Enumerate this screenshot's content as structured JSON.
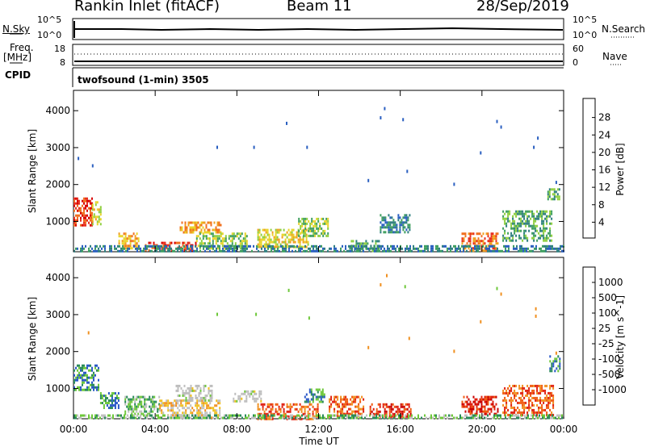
{
  "header": {
    "station": "Rankin Inlet (fitACF)",
    "beam": "Beam 11",
    "date": "28/Sep/2019"
  },
  "status_panels": {
    "nsky_label": "N.Sky",
    "nsky_ticks": [
      "10^5",
      "10^0"
    ],
    "nsearch_label": "N.Search",
    "nsearch_ticks": [
      "10^5",
      "10^0"
    ],
    "freq_label": "Freq.",
    "freq_unit": "[MHz]",
    "freq_ticks": [
      "18",
      "8"
    ],
    "nave_label": "Nave",
    "nave_ticks": [
      "60",
      "0"
    ],
    "cpid_label": "CPID",
    "cpid_value": "twofsound (1-min) 3505"
  },
  "colors": {
    "power": [
      "#1e3fd8",
      "#2a5fc0",
      "#2f7f7f",
      "#3f9f5f",
      "#8fcf3f",
      "#e8d42a",
      "#f0a020",
      "#f07020",
      "#e83020",
      "#d80000"
    ],
    "velocity": [
      "#1a2ea0",
      "#2a58c8",
      "#2a8a5a",
      "#6ec83a",
      "#c0c0c0",
      "#f0c020",
      "#f09020",
      "#f05a10",
      "#e02010",
      "#c80000"
    ],
    "gray": "#bdbdbd"
  },
  "chart_data": [
    {
      "type": "heatmap",
      "panel": "power",
      "ylabel": "Slant Range [km]",
      "yticks": [
        "4000",
        "3000",
        "2000",
        "1000"
      ],
      "ylim": [
        180,
        4550
      ],
      "xticks": [
        "00:00",
        "04:00",
        "08:00",
        "12:00",
        "16:00",
        "20:00",
        "00:00"
      ],
      "colorbar_label": "Power [dB]",
      "colorbar_ticks": [
        "28",
        "24",
        "20",
        "16",
        "12",
        "8",
        "4"
      ],
      "regions": [
        {
          "t0": 0.0,
          "t1": 0.9,
          "r0": 900,
          "r1": 1650,
          "level": 8
        },
        {
          "t0": 0.9,
          "t1": 1.3,
          "r0": 950,
          "r1": 1550,
          "level": 5
        },
        {
          "t0": 2.2,
          "t1": 3.2,
          "r0": 250,
          "r1": 700,
          "level": 6
        },
        {
          "t0": 3.5,
          "t1": 6.0,
          "r0": 200,
          "r1": 450,
          "level": 8
        },
        {
          "t0": 5.2,
          "t1": 7.2,
          "r0": 700,
          "r1": 1000,
          "level": 6
        },
        {
          "t0": 6.0,
          "t1": 8.5,
          "r0": 300,
          "r1": 700,
          "level": 4
        },
        {
          "t0": 9.0,
          "t1": 11.5,
          "r0": 300,
          "r1": 800,
          "level": 5
        },
        {
          "t0": 11.0,
          "t1": 12.5,
          "r0": 600,
          "r1": 1100,
          "level": 4
        },
        {
          "t0": 13.5,
          "t1": 15.0,
          "r0": 200,
          "r1": 500,
          "level": 3
        },
        {
          "t0": 15.0,
          "t1": 16.5,
          "r0": 700,
          "r1": 1200,
          "level": 2
        },
        {
          "t0": 19.0,
          "t1": 20.8,
          "r0": 200,
          "r1": 700,
          "level": 7
        },
        {
          "t0": 21.0,
          "t1": 23.4,
          "r0": 500,
          "r1": 1300,
          "level": 3
        },
        {
          "t0": 23.2,
          "t1": 23.8,
          "r0": 1600,
          "r1": 1900,
          "level": 3
        },
        {
          "t0": 0.0,
          "t1": 24.0,
          "r0": 180,
          "r1": 360,
          "level": 2
        }
      ],
      "scatter": [
        {
          "t": 15.2,
          "r": 4100
        },
        {
          "t": 15.0,
          "r": 3850
        },
        {
          "t": 16.1,
          "r": 3800
        },
        {
          "t": 10.4,
          "r": 3700
        },
        {
          "t": 20.7,
          "r": 3750
        },
        {
          "t": 20.9,
          "r": 3600
        },
        {
          "t": 22.7,
          "r": 3300
        },
        {
          "t": 22.5,
          "r": 3050
        },
        {
          "t": 7.0,
          "r": 3050
        },
        {
          "t": 8.8,
          "r": 3050
        },
        {
          "t": 11.4,
          "r": 3050
        },
        {
          "t": 0.2,
          "r": 2750
        },
        {
          "t": 0.9,
          "r": 2550
        },
        {
          "t": 16.3,
          "r": 2400
        },
        {
          "t": 14.4,
          "r": 2150
        },
        {
          "t": 18.6,
          "r": 2050
        },
        {
          "t": 23.6,
          "r": 2100
        },
        {
          "t": 19.9,
          "r": 2900
        }
      ]
    },
    {
      "type": "heatmap",
      "panel": "velocity",
      "ylabel": "Slant Range [km]",
      "yticks": [
        "4000",
        "3000",
        "2000",
        "1000"
      ],
      "ylim": [
        180,
        4550
      ],
      "xticks": [
        "00:00",
        "04:00",
        "08:00",
        "12:00",
        "16:00",
        "20:00",
        "00:00"
      ],
      "xlabel": "Time UT",
      "colorbar_label": "Velocity [m s^-1]",
      "colorbar_ticks": [
        "1000",
        "500",
        "100",
        "25",
        "-25",
        "-100",
        "-500",
        "-1000"
      ],
      "regions": [
        {
          "t0": 0.0,
          "t1": 1.2,
          "r0": 950,
          "r1": 1650,
          "level": 2
        },
        {
          "t0": 1.3,
          "t1": 2.2,
          "r0": 500,
          "r1": 900,
          "level": 2
        },
        {
          "t0": 2.5,
          "t1": 4.2,
          "r0": 300,
          "r1": 800,
          "level": 3
        },
        {
          "t0": 4.2,
          "t1": 7.2,
          "r0": 200,
          "r1": 700,
          "level": 5
        },
        {
          "t0": 5.0,
          "t1": 6.8,
          "r0": 700,
          "r1": 1100,
          "level": 4
        },
        {
          "t0": 7.8,
          "t1": 9.2,
          "r0": 650,
          "r1": 950,
          "level": 4
        },
        {
          "t0": 9.0,
          "t1": 12.0,
          "r0": 200,
          "r1": 600,
          "level": 7
        },
        {
          "t0": 11.3,
          "t1": 12.3,
          "r0": 650,
          "r1": 1000,
          "level": 2
        },
        {
          "t0": 12.5,
          "t1": 14.2,
          "r0": 250,
          "r1": 800,
          "level": 7
        },
        {
          "t0": 14.5,
          "t1": 16.5,
          "r0": 250,
          "r1": 600,
          "level": 8
        },
        {
          "t0": 19.0,
          "t1": 20.8,
          "r0": 300,
          "r1": 800,
          "level": 8
        },
        {
          "t0": 21.0,
          "t1": 23.5,
          "r0": 300,
          "r1": 1100,
          "level": 7
        },
        {
          "t0": 23.3,
          "t1": 23.8,
          "r0": 1500,
          "r1": 1900,
          "level": 2
        },
        {
          "t0": 0.0,
          "t1": 24.0,
          "r0": 180,
          "r1": 300,
          "level": 3
        }
      ],
      "scatter": [
        {
          "t": 15.3,
          "r": 4100
        },
        {
          "t": 15.0,
          "r": 3850
        },
        {
          "t": 16.2,
          "r": 3800
        },
        {
          "t": 10.5,
          "r": 3700
        },
        {
          "t": 20.7,
          "r": 3750
        },
        {
          "t": 20.9,
          "r": 3600
        },
        {
          "t": 22.6,
          "r": 3200
        },
        {
          "t": 22.6,
          "r": 3000
        },
        {
          "t": 7.0,
          "r": 3050
        },
        {
          "t": 8.9,
          "r": 3050
        },
        {
          "t": 11.5,
          "r": 2950
        },
        {
          "t": 0.7,
          "r": 2550
        },
        {
          "t": 16.4,
          "r": 2400
        },
        {
          "t": 14.4,
          "r": 2150
        },
        {
          "t": 18.6,
          "r": 2050
        },
        {
          "t": 23.6,
          "r": 2000
        },
        {
          "t": 19.9,
          "r": 2850
        }
      ]
    }
  ]
}
